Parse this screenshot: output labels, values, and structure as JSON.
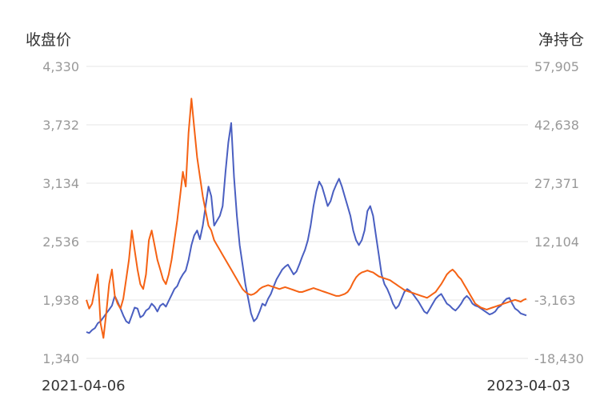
{
  "chart_data": {
    "type": "line",
    "left_axis_title": "收盘价",
    "right_axis_title": "净持仓",
    "x_start": "2021-04-06",
    "x_end": "2023-04-03",
    "y_left": {
      "ticks": [
        "4,330",
        "3,732",
        "3,134",
        "2,536",
        "1,938",
        "1,340"
      ],
      "range": [
        1340,
        4330
      ]
    },
    "y_right": {
      "ticks": [
        "57,905",
        "42,638",
        "27,371",
        "12,104",
        "-3,163",
        "-18,430"
      ],
      "range": [
        -18430,
        57905
      ]
    },
    "grid": true,
    "series": [
      {
        "axis": "left",
        "color": "#4a5fc1",
        "values": [
          1610,
          1600,
          1630,
          1650,
          1700,
          1720,
          1760,
          1800,
          1840,
          1880,
          1980,
          1920,
          1850,
          1780,
          1720,
          1700,
          1780,
          1860,
          1850,
          1760,
          1780,
          1830,
          1850,
          1900,
          1870,
          1820,
          1880,
          1900,
          1870,
          1930,
          1990,
          2050,
          2080,
          2150,
          2200,
          2240,
          2350,
          2500,
          2600,
          2650,
          2560,
          2700,
          2900,
          3100,
          3000,
          2700,
          2750,
          2800,
          2900,
          3250,
          3550,
          3750,
          3200,
          2800,
          2500,
          2300,
          2100,
          1950,
          1800,
          1720,
          1750,
          1820,
          1900,
          1880,
          1950,
          2000,
          2080,
          2150,
          2200,
          2250,
          2280,
          2300,
          2250,
          2200,
          2230,
          2300,
          2380,
          2450,
          2550,
          2700,
          2900,
          3050,
          3150,
          3100,
          3000,
          2900,
          2950,
          3050,
          3120,
          3180,
          3100,
          3000,
          2900,
          2800,
          2650,
          2550,
          2500,
          2550,
          2650,
          2850,
          2900,
          2800,
          2600,
          2400,
          2200,
          2100,
          2050,
          1980,
          1900,
          1850,
          1880,
          1950,
          2020,
          2050,
          2030,
          2000,
          1960,
          1920,
          1870,
          1820,
          1800,
          1850,
          1900,
          1950,
          1980,
          2000,
          1950,
          1900,
          1880,
          1850,
          1830,
          1860,
          1900,
          1950,
          1980,
          1950,
          1900,
          1880,
          1870,
          1850,
          1830,
          1810,
          1790,
          1800,
          1820,
          1860,
          1880,
          1920,
          1950,
          1960,
          1900,
          1850,
          1830,
          1800,
          1790,
          1780
        ]
      },
      {
        "axis": "left",
        "color": "#f56214",
        "values": [
          1940,
          1850,
          1900,
          2050,
          2200,
          1700,
          1550,
          1800,
          2100,
          2250,
          1980,
          1900,
          1850,
          1950,
          2150,
          2350,
          2650,
          2450,
          2250,
          2100,
          2050,
          2200,
          2550,
          2650,
          2500,
          2350,
          2250,
          2150,
          2100,
          2200,
          2350,
          2550,
          2750,
          3000,
          3250,
          3100,
          3650,
          4000,
          3700,
          3400,
          3200,
          3000,
          2850,
          2700,
          2650,
          2550,
          2500,
          2450,
          2400,
          2350,
          2300,
          2250,
          2200,
          2150,
          2100,
          2050,
          2020,
          2000,
          1990,
          2000,
          2020,
          2050,
          2070,
          2080,
          2090,
          2080,
          2070,
          2060,
          2050,
          2060,
          2070,
          2060,
          2050,
          2040,
          2030,
          2020,
          2020,
          2030,
          2040,
          2050,
          2060,
          2050,
          2040,
          2030,
          2020,
          2010,
          2000,
          1990,
          1980,
          1980,
          1990,
          2000,
          2020,
          2060,
          2120,
          2170,
          2200,
          2220,
          2230,
          2240,
          2230,
          2220,
          2200,
          2180,
          2170,
          2160,
          2150,
          2140,
          2120,
          2100,
          2080,
          2060,
          2040,
          2030,
          2020,
          2010,
          2000,
          1990,
          1980,
          1970,
          1960,
          1980,
          2000,
          2020,
          2060,
          2100,
          2150,
          2200,
          2230,
          2250,
          2220,
          2180,
          2150,
          2100,
          2050,
          2000,
          1950,
          1900,
          1880,
          1860,
          1850,
          1840,
          1850,
          1860,
          1870,
          1880,
          1890,
          1900,
          1910,
          1920,
          1930,
          1940,
          1930,
          1920,
          1940,
          1950
        ]
      }
    ]
  }
}
